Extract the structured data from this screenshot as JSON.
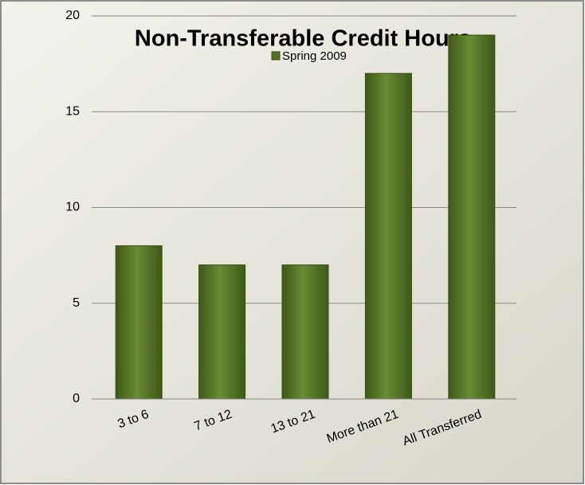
{
  "chart_data": {
    "type": "bar",
    "title": "Non-Transferable Credit Hours",
    "categories": [
      "3 to 6",
      "7 to 12",
      "13 to 21",
      "More than 21",
      "All Transferred"
    ],
    "series": [
      {
        "name": "Spring 2009",
        "color": "#556f26",
        "values": [
          8,
          7,
          7,
          17,
          19
        ]
      }
    ],
    "ylim": [
      0,
      20
    ],
    "yticks": [
      0,
      5,
      10,
      15,
      20
    ],
    "grid": true,
    "legend": "top"
  }
}
